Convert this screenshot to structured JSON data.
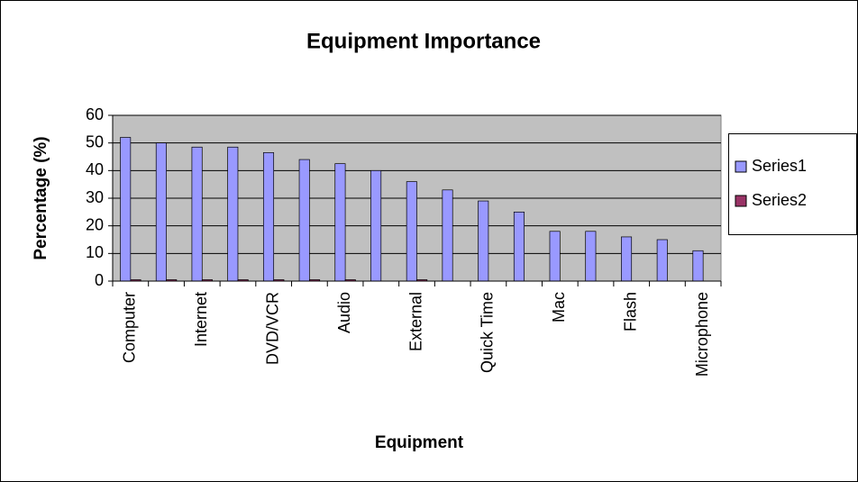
{
  "chart_data": {
    "type": "bar",
    "title": "Equipment Importance",
    "x_label": "Equipment",
    "y_label": "Percentage (%)",
    "categories": [
      "Computer",
      null,
      "Internet",
      null,
      "DVD/VCR",
      null,
      "Audio",
      null,
      "External",
      null,
      "Quick Time",
      null,
      "Mac",
      null,
      "Flash",
      null,
      "Microphone"
    ],
    "series": [
      {
        "name": "Series1",
        "color": "#9999ff",
        "values": [
          52,
          50,
          48.5,
          48.5,
          46.5,
          44,
          42.5,
          40,
          36,
          33,
          29,
          25,
          18,
          18,
          16,
          15,
          11
        ]
      },
      {
        "name": "Series2",
        "color": "#993366",
        "values": [
          0.5,
          0.5,
          0.5,
          0.5,
          0.5,
          0.5,
          0.5,
          0,
          0.5,
          0,
          0,
          0,
          0,
          0,
          0,
          0,
          0
        ]
      }
    ],
    "ylim": [
      0,
      60
    ],
    "yticks": [
      0,
      10,
      20,
      30,
      40,
      50,
      60
    ],
    "grid": true,
    "legend": "right"
  }
}
